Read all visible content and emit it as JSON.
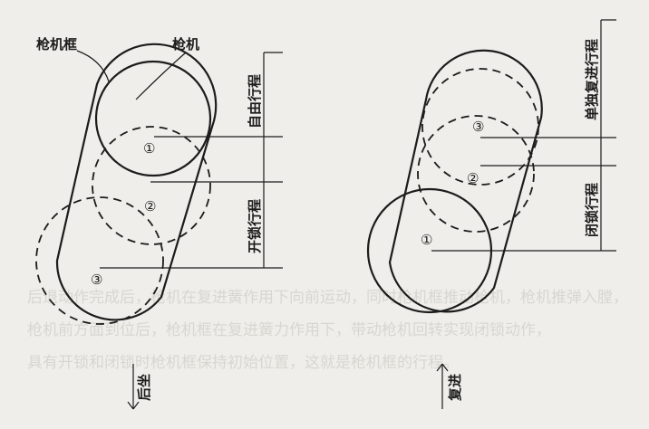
{
  "left_diagram": {
    "label_frame": "枪机框",
    "label_bolt": "枪机",
    "pos_1": "①",
    "pos_2": "②",
    "pos_3": "③",
    "label_free_travel": "自由行程",
    "label_unlock_travel": "开锁行程",
    "direction": "后坐"
  },
  "right_diagram": {
    "pos_1": "①",
    "pos_2": "②",
    "pos_3": "③",
    "label_single_advance": "单独复进行程",
    "label_lock_travel": "闭锁行程",
    "direction": "复进"
  },
  "background_text": [
    "后退动作完成后，枪机在复进簧作用下向前运动，同时枪机框推动枪机，枪机推弹入膛，",
    "枪机前方面到位后，枪机框在复进簧力作用下，带动枪机回转实现闭锁动作，",
    "具有开锁和闭锁时枪机框保持初始位置，这就是枪机框的行程。"
  ]
}
